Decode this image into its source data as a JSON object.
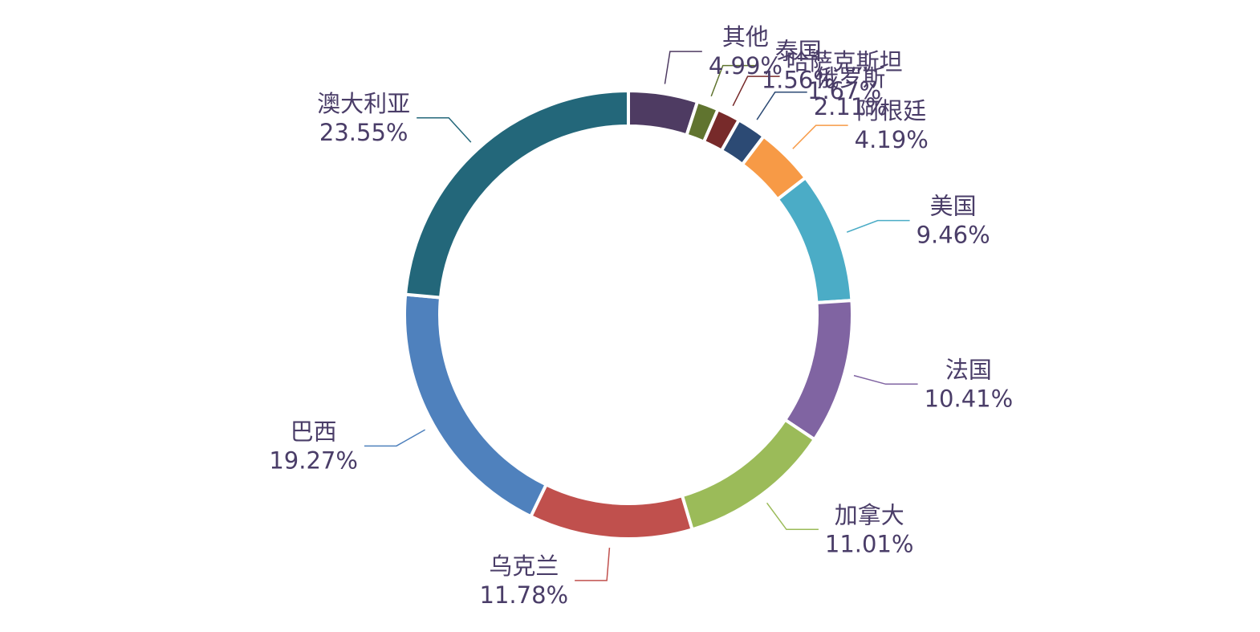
{
  "chart_data": {
    "type": "pie",
    "variant": "donut",
    "slices": [
      {
        "label": "其他",
        "value": 4.99,
        "display": "4.99%",
        "color": "#4e3b62"
      },
      {
        "label": "泰国",
        "value": 1.56,
        "display": "1.56%",
        "color": "#60742f"
      },
      {
        "label": "哈萨克斯坦",
        "value": 1.67,
        "display": "1.67%",
        "color": "#772a2a"
      },
      {
        "label": "俄罗斯",
        "value": 2.11,
        "display": "2.11%",
        "color": "#2c4a74"
      },
      {
        "label": "阿根廷",
        "value": 4.19,
        "display": "4.19%",
        "color": "#f79a46"
      },
      {
        "label": "美国",
        "value": 9.46,
        "display": "9.46%",
        "color": "#4bacc6"
      },
      {
        "label": "法国",
        "value": 10.41,
        "display": "10.41%",
        "color": "#8064a2"
      },
      {
        "label": "加拿大",
        "value": 11.01,
        "display": "11.01%",
        "color": "#9bbb59"
      },
      {
        "label": "乌克兰",
        "value": 11.78,
        "display": "11.78%",
        "color": "#c0504d"
      },
      {
        "label": "巴西",
        "value": 19.27,
        "display": "19.27%",
        "color": "#4f81bd"
      },
      {
        "label": "澳大利亚",
        "value": 23.55,
        "display": "23.55%",
        "color": "#23677a"
      }
    ],
    "start_angle_deg": 0,
    "direction": "clockwise",
    "legend": "none"
  }
}
